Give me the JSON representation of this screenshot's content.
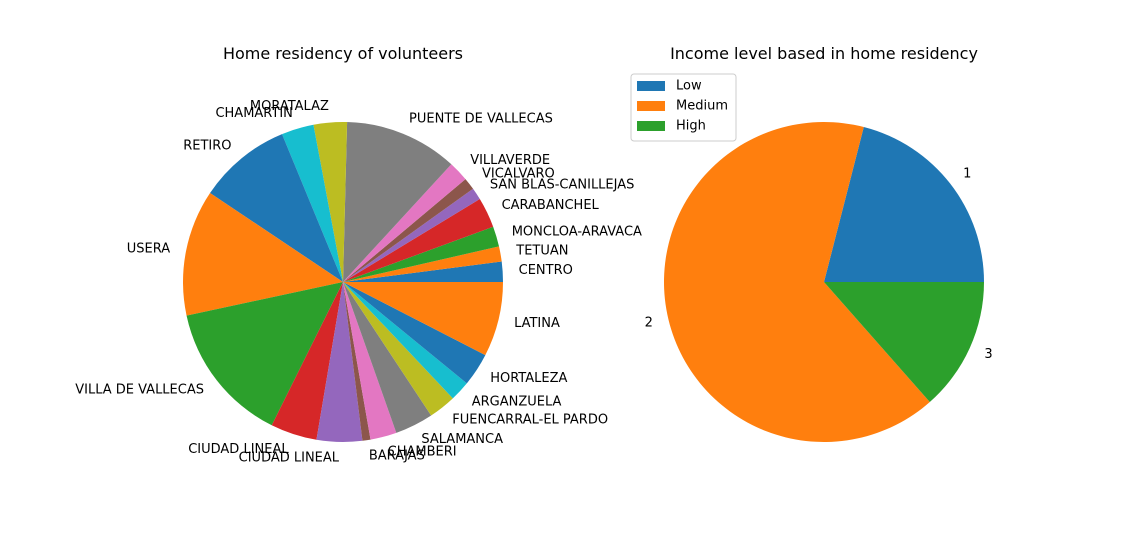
{
  "chart_data": [
    {
      "type": "pie",
      "title": "Home residency of volunteers",
      "start_angle_deg": 0,
      "direction": "counterclockwise",
      "slices": [
        {
          "label": "CENTRO",
          "value": 2.0,
          "color": "#1f77b4"
        },
        {
          "label": "TETUAN",
          "value": 1.5,
          "color": "#ff7f0e"
        },
        {
          "label": "MONCLOA-ARAVACA",
          "value": 2.0,
          "color": "#2ca02c"
        },
        {
          "label": "CARABANCHEL",
          "value": 3.0,
          "color": "#d62728"
        },
        {
          "label": "SAN BLAS-CANILLEJAS",
          "value": 1.2,
          "color": "#9467bd"
        },
        {
          "label": "VICALVARO",
          "value": 1.2,
          "color": "#8c564b"
        },
        {
          "label": "VILLAVERDE",
          "value": 2.0,
          "color": "#e377c2"
        },
        {
          "label": "PUENTE DE VALLECAS",
          "value": 11.2,
          "color": "#7f7f7f"
        },
        {
          "label": "MORATALAZ",
          "value": 3.3,
          "color": "#bcbd22"
        },
        {
          "label": "CHAMARTIN",
          "value": 3.2,
          "color": "#17becf"
        },
        {
          "label": "RETIRO",
          "value": 9.2,
          "color": "#1f77b4"
        },
        {
          "label": "USERA",
          "value": 12.5,
          "color": "#ff7f0e"
        },
        {
          "label": "VILLA DE VALLECAS",
          "value": 14.0,
          "color": "#2ca02c"
        },
        {
          "label": "CIUDAD LINEAL",
          "value": 4.6,
          "color": "#d62728"
        },
        {
          "label": "CIUDAD LINEAL",
          "value": 4.5,
          "color": "#9467bd"
        },
        {
          "label": "BARAJAS",
          "value": 0.8,
          "color": "#8c564b"
        },
        {
          "label": "CHAMBERI",
          "value": 2.6,
          "color": "#e377c2"
        },
        {
          "label": "SALAMANCA",
          "value": 3.8,
          "color": "#7f7f7f"
        },
        {
          "label": "FUENCARRAL-EL PARDO",
          "value": 2.7,
          "color": "#bcbd22"
        },
        {
          "label": "ARGANZUELA",
          "value": 2.0,
          "color": "#17becf"
        },
        {
          "label": "HORTALEZA",
          "value": 3.3,
          "color": "#1f77b4"
        },
        {
          "label": "LATINA",
          "value": 7.4,
          "color": "#ff7f0e"
        }
      ]
    },
    {
      "type": "pie",
      "title": "Income level based in home residency",
      "start_angle_deg": 0,
      "direction": "counterclockwise",
      "slices": [
        {
          "label": "1",
          "value": 21.0,
          "color": "#1f77b4"
        },
        {
          "label": "2",
          "value": 65.5,
          "color": "#ff7f0e"
        },
        {
          "label": "3",
          "value": 13.5,
          "color": "#2ca02c"
        }
      ],
      "legend": {
        "placement": "top-left",
        "entries": [
          {
            "label": "Low",
            "color": "#1f77b4"
          },
          {
            "label": "Medium",
            "color": "#ff7f0e"
          },
          {
            "label": "High",
            "color": "#2ca02c"
          }
        ]
      }
    }
  ]
}
